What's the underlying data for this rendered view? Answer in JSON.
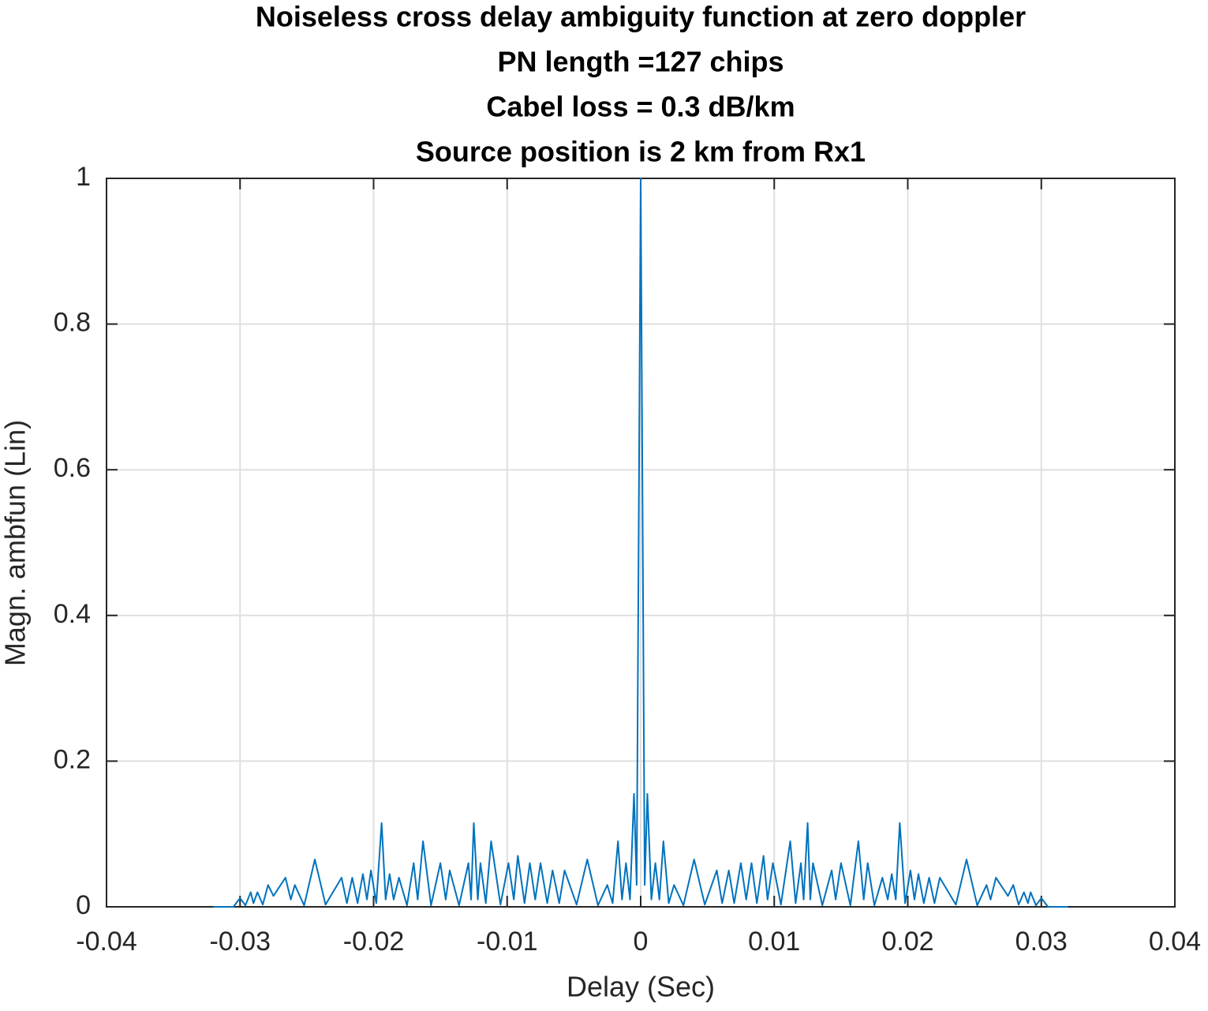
{
  "chart_data": {
    "type": "line",
    "title": [
      "Noiseless cross delay ambiguity function at zero doppler",
      "PN length =127 chips",
      "Cabel loss = 0.3 dB/km",
      "Source position is 2 km from Rx1"
    ],
    "xlabel": "Delay  (Sec)",
    "ylabel": "Magn. ambfun (Lin)",
    "xlim": [
      -0.04,
      0.04
    ],
    "xticks": [
      -0.04,
      -0.03,
      -0.02,
      -0.01,
      0,
      0.01,
      0.02,
      0.03,
      0.04
    ],
    "ylim": [
      0,
      1
    ],
    "yticks": [
      0,
      0.2,
      0.4,
      0.6,
      0.8,
      1
    ],
    "grid": true,
    "x": [
      -0.032,
      -0.0305,
      -0.03,
      -0.0296,
      -0.0292,
      -0.029,
      -0.0287,
      -0.0283,
      -0.0279,
      -0.0275,
      -0.0266,
      -0.0262,
      -0.0259,
      -0.0252,
      -0.0244,
      -0.0236,
      -0.0224,
      -0.022,
      -0.0216,
      -0.0212,
      -0.0208,
      -0.0205,
      -0.0202,
      -0.0198,
      -0.0194,
      -0.0191,
      -0.0188,
      -0.0185,
      -0.0181,
      -0.0175,
      -0.017,
      -0.0167,
      -0.0163,
      -0.0157,
      -0.015,
      -0.0146,
      -0.0143,
      -0.0136,
      -0.0129,
      -0.0127,
      -0.0125,
      -0.0122,
      -0.012,
      -0.0116,
      -0.0112,
      -0.0105,
      -0.0099,
      -0.0095,
      -0.0092,
      -0.0087,
      -0.0083,
      -0.0079,
      -0.0075,
      -0.007,
      -0.0066,
      -0.0061,
      -0.0057,
      -0.0048,
      -0.004,
      -0.0032,
      -0.0025,
      -0.0021,
      -0.0017,
      -0.0014,
      -0.0011,
      -0.0008,
      -0.0005,
      -0.0003,
      0,
      0.0003,
      0.0005,
      0.0008,
      0.0011,
      0.0014,
      0.0017,
      0.0021,
      0.0025,
      0.0032,
      0.004,
      0.0048,
      0.0057,
      0.0061,
      0.0066,
      0.007,
      0.0075,
      0.0079,
      0.0083,
      0.0087,
      0.0092,
      0.0095,
      0.0099,
      0.0105,
      0.0112,
      0.0116,
      0.012,
      0.0122,
      0.0125,
      0.0127,
      0.0129,
      0.0136,
      0.0143,
      0.0146,
      0.015,
      0.0157,
      0.0163,
      0.0167,
      0.017,
      0.0175,
      0.0181,
      0.0185,
      0.0188,
      0.0191,
      0.0194,
      0.0198,
      0.0202,
      0.0205,
      0.0208,
      0.0212,
      0.0216,
      0.022,
      0.0224,
      0.0236,
      0.0244,
      0.0252,
      0.0259,
      0.0262,
      0.0266,
      0.0275,
      0.0279,
      0.0283,
      0.0287,
      0.029,
      0.0292,
      0.0296,
      0.03,
      0.0305,
      0.032
    ],
    "series": [
      {
        "color": "#0072bd",
        "values": [
          0,
          0,
          0.012,
          0.002,
          0.02,
          0.005,
          0.02,
          0.003,
          0.03,
          0.015,
          0.04,
          0.01,
          0.03,
          0.002,
          0.065,
          0.003,
          0.04,
          0.005,
          0.04,
          0.005,
          0.045,
          0.01,
          0.05,
          0.005,
          0.115,
          0.01,
          0.045,
          0.01,
          0.04,
          0.002,
          0.06,
          0.01,
          0.09,
          0.002,
          0.06,
          0.01,
          0.05,
          0.002,
          0.06,
          0.01,
          0.115,
          0.01,
          0.06,
          0.005,
          0.09,
          0.003,
          0.06,
          0.01,
          0.07,
          0.005,
          0.06,
          0.01,
          0.06,
          0.005,
          0.05,
          0.005,
          0.05,
          0.003,
          0.065,
          0.002,
          0.03,
          0.005,
          0.09,
          0.01,
          0.06,
          0.01,
          0.155,
          0.03,
          1,
          0.03,
          0.155,
          0.01,
          0.06,
          0.01,
          0.09,
          0.005,
          0.03,
          0.002,
          0.065,
          0.003,
          0.05,
          0.005,
          0.05,
          0.005,
          0.06,
          0.01,
          0.06,
          0.005,
          0.07,
          0.01,
          0.06,
          0.003,
          0.09,
          0.005,
          0.06,
          0.01,
          0.115,
          0.01,
          0.06,
          0.002,
          0.05,
          0.01,
          0.06,
          0.002,
          0.09,
          0.01,
          0.06,
          0.002,
          0.04,
          0.01,
          0.045,
          0.01,
          0.115,
          0.005,
          0.05,
          0.01,
          0.045,
          0.005,
          0.04,
          0.005,
          0.04,
          0.003,
          0.065,
          0.002,
          0.03,
          0.01,
          0.04,
          0.015,
          0.03,
          0.003,
          0.02,
          0.005,
          0.02,
          0.002,
          0.012,
          0,
          0
        ]
      }
    ]
  }
}
